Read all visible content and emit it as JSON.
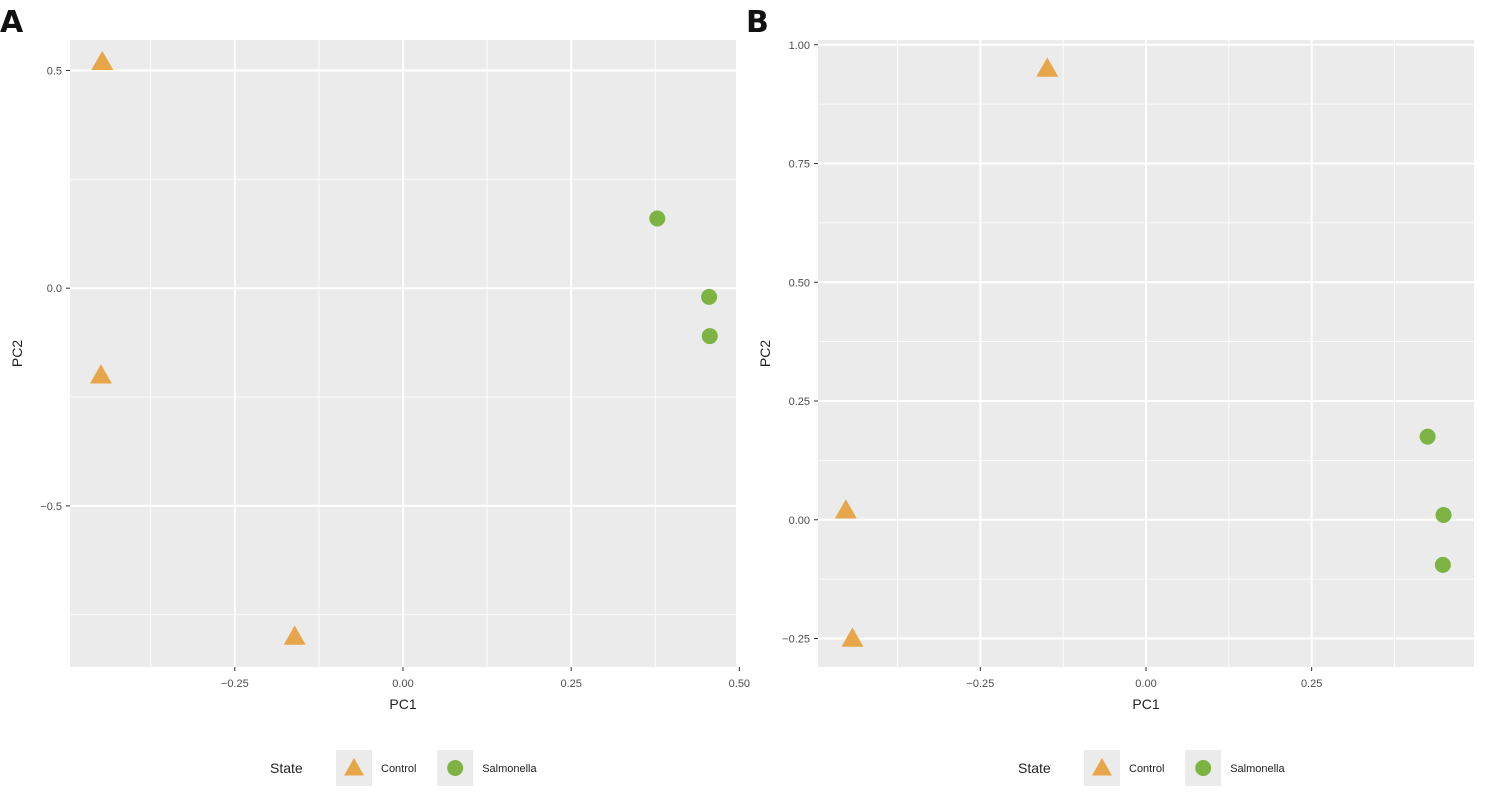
{
  "panels": [
    {
      "letter": "A"
    },
    {
      "letter": "B"
    }
  ],
  "legend": {
    "title": "State",
    "items": [
      {
        "label": "Control",
        "shape": "triangle",
        "color": "#E8A64B"
      },
      {
        "label": "Salmonella",
        "shape": "circle",
        "color": "#7CB342"
      }
    ]
  },
  "colors": {
    "panel_bg": "#EBEBEB",
    "grid": "#FFFFFF",
    "control": "#E8A64B",
    "salmonella": "#7CB342"
  },
  "chart_data": [
    {
      "type": "scatter",
      "xlabel": "PC1",
      "ylabel": "PC2",
      "xlim": [
        -0.495,
        0.495
      ],
      "ylim": [
        -0.87,
        0.57
      ],
      "x_ticks": [
        -0.25,
        0.0,
        0.25,
        0.5
      ],
      "x_tick_labels": [
        "−0.25",
        "0.00",
        "0.25",
        "0.50"
      ],
      "y_ticks": [
        -0.5,
        0.0,
        0.5
      ],
      "y_tick_labels": [
        "−0.5",
        "0.0",
        "0.5"
      ],
      "grid": true,
      "legend_position": "bottom",
      "series": [
        {
          "name": "Control",
          "shape": "triangle",
          "color": "#E8A64B",
          "points": [
            {
              "x": -0.447,
              "y": 0.52
            },
            {
              "x": -0.449,
              "y": -0.2
            },
            {
              "x": -0.161,
              "y": -0.8
            }
          ]
        },
        {
          "name": "Salmonella",
          "shape": "circle",
          "color": "#7CB342",
          "points": [
            {
              "x": 0.378,
              "y": 0.16
            },
            {
              "x": 0.455,
              "y": -0.02
            },
            {
              "x": 0.456,
              "y": -0.11
            }
          ]
        }
      ]
    },
    {
      "type": "scatter",
      "xlabel": "PC1",
      "ylabel": "PC2",
      "xlim": [
        -0.495,
        0.495
      ],
      "ylim": [
        -0.31,
        1.01
      ],
      "x_ticks": [
        -0.25,
        0.0,
        0.25
      ],
      "x_tick_labels": [
        "−0.25",
        "0.00",
        "0.25"
      ],
      "y_ticks": [
        -0.25,
        0.0,
        0.25,
        0.5,
        0.75,
        1.0
      ],
      "y_tick_labels": [
        "−0.25",
        "0.00",
        "0.25",
        "0.50",
        "0.75",
        "1.00"
      ],
      "grid": true,
      "legend_position": "bottom",
      "series": [
        {
          "name": "Control",
          "shape": "triangle",
          "color": "#E8A64B",
          "points": [
            {
              "x": -0.149,
              "y": 0.95
            },
            {
              "x": -0.453,
              "y": 0.02
            },
            {
              "x": -0.443,
              "y": -0.25
            }
          ]
        },
        {
          "name": "Salmonella",
          "shape": "circle",
          "color": "#7CB342",
          "points": [
            {
              "x": 0.425,
              "y": 0.175
            },
            {
              "x": 0.449,
              "y": 0.01
            },
            {
              "x": 0.448,
              "y": -0.095
            }
          ]
        }
      ]
    }
  ]
}
